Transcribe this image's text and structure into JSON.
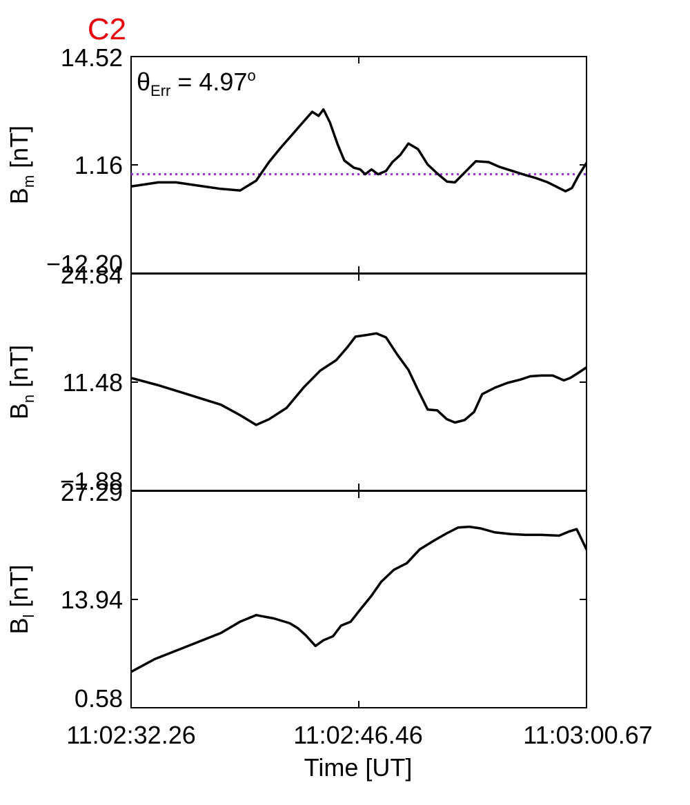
{
  "chart_data": {
    "type": "line",
    "title": "C2",
    "title_color": "#e8000b",
    "xlabel": "Time [UT]",
    "x_tick_labels": [
      "11:02:32.26",
      "11:02:46.46",
      "11:03:00.67"
    ],
    "x_range_seconds": [
      0,
      28.41
    ],
    "annotation": {
      "symbol": "θ",
      "subscript": "Err",
      "equals": " =  4.97",
      "superscript": "o"
    },
    "panels": [
      {
        "name": "Bm",
        "ylabel_main": "B",
        "ylabel_sub": "m",
        "ylabel_unit": " [nT]",
        "yticks": [
          "14.52",
          "1.16",
          "−12.20"
        ],
        "ylim": [
          -12.2,
          14.52
        ],
        "reference_line": {
          "value": 0.0,
          "color": "#9a30e0",
          "style": "dotted"
        },
        "x": [
          0,
          1.7,
          2.8,
          4.2,
          5.6,
          6.8,
          7.8,
          8.6,
          9.3,
          10.1,
          10.8,
          11.3,
          11.7,
          12.0,
          12.4,
          12.9,
          13.3,
          13.9,
          14.3,
          14.6,
          15.0,
          15.4,
          15.9,
          16.3,
          16.8,
          17.3,
          17.9,
          18.5,
          19.1,
          19.7,
          20.2,
          20.8,
          21.5,
          22.3,
          23.0,
          23.8,
          24.6,
          25.3,
          26.0,
          26.6,
          27.1,
          27.5,
          27.9,
          28.41
        ],
        "y": [
          -1.5,
          -1.0,
          -1.0,
          -1.4,
          -1.8,
          -2.0,
          -0.8,
          1.5,
          3.2,
          5.0,
          6.6,
          7.7,
          7.2,
          8.0,
          6.4,
          3.6,
          1.7,
          0.8,
          0.6,
          0.0,
          0.6,
          0.0,
          0.4,
          1.5,
          2.4,
          3.8,
          3.1,
          1.2,
          0.1,
          -0.9,
          -1.0,
          0.2,
          1.6,
          1.5,
          0.9,
          0.4,
          -0.1,
          -0.5,
          -1.0,
          -1.6,
          -2.1,
          -1.7,
          -0.2,
          1.4
        ]
      },
      {
        "name": "Bn",
        "ylabel_main": "B",
        "ylabel_sub": "n",
        "ylabel_unit": " [nT]",
        "yticks": [
          "24.84",
          "11.48",
          "−1.88"
        ],
        "ylim": [
          -1.88,
          24.84
        ],
        "x": [
          0,
          1.7,
          3.5,
          5.6,
          6.8,
          7.8,
          8.6,
          9.7,
          10.8,
          11.8,
          12.8,
          13.5,
          14.0,
          14.7,
          15.3,
          15.9,
          16.6,
          17.3,
          17.9,
          18.5,
          19.1,
          19.7,
          20.2,
          20.8,
          21.4,
          21.9,
          22.7,
          23.5,
          24.3,
          24.9,
          25.6,
          26.3,
          27.0,
          27.4,
          27.8,
          28.41
        ],
        "y": [
          12.0,
          11.1,
          10.0,
          8.7,
          7.4,
          6.2,
          6.9,
          8.3,
          10.9,
          12.9,
          14.2,
          15.8,
          17.1,
          17.3,
          17.5,
          17.0,
          14.9,
          13.0,
          10.5,
          8.1,
          8.0,
          6.9,
          6.5,
          6.8,
          7.8,
          10.0,
          10.8,
          11.4,
          11.8,
          12.2,
          12.3,
          12.3,
          11.7,
          12.0,
          12.5,
          13.3
        ]
      },
      {
        "name": "Bl",
        "ylabel_main": "B",
        "ylabel_sub": "l",
        "ylabel_unit": " [nT]",
        "yticks": [
          "27.29",
          "13.94",
          "0.58"
        ],
        "ylim": [
          0.58,
          27.29
        ],
        "x": [
          0,
          1.5,
          3.3,
          5.6,
          6.8,
          7.8,
          8.9,
          9.9,
          10.4,
          10.9,
          11.5,
          12.0,
          12.6,
          13.1,
          13.7,
          14.3,
          15.0,
          15.6,
          16.4,
          17.2,
          18.0,
          18.9,
          19.7,
          20.4,
          21.1,
          21.8,
          22.7,
          23.7,
          24.6,
          25.6,
          26.7,
          27.3,
          27.8,
          28.41
        ],
        "y": [
          5.0,
          6.6,
          8.0,
          9.8,
          11.2,
          12.0,
          11.6,
          11.0,
          10.4,
          9.5,
          8.2,
          8.9,
          9.4,
          10.7,
          11.2,
          12.7,
          14.4,
          16.1,
          17.6,
          18.4,
          20.1,
          21.2,
          22.1,
          22.8,
          22.9,
          22.7,
          22.2,
          22.0,
          21.9,
          21.9,
          21.8,
          22.3,
          22.6,
          20.1
        ]
      }
    ]
  }
}
